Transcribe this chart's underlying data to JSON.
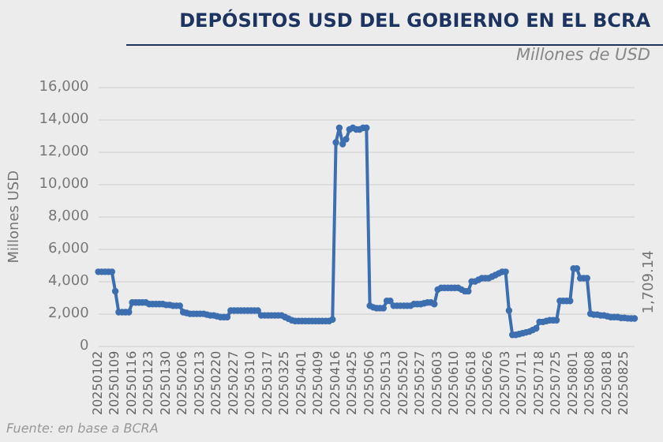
{
  "chart_data": {
    "type": "line",
    "title": "DEPÓSITOS USD DEL GOBIERNO EN EL BCRA",
    "subtitle": "Millones de USD",
    "ylabel": "Millones USD",
    "categories": [
      "20250102",
      null,
      null,
      null,
      null,
      "20250109",
      null,
      null,
      null,
      null,
      "20250116",
      null,
      null,
      null,
      null,
      "20250123",
      null,
      null,
      null,
      null,
      "20250130",
      null,
      null,
      null,
      null,
      "20250206",
      null,
      null,
      null,
      null,
      "20250213",
      null,
      null,
      null,
      null,
      "20250220",
      null,
      null,
      null,
      null,
      "20250227",
      null,
      null,
      null,
      null,
      "20250310",
      null,
      null,
      null,
      null,
      "20250317",
      null,
      null,
      null,
      null,
      "20250325",
      null,
      null,
      null,
      null,
      "20250401",
      null,
      null,
      null,
      null,
      "20250409",
      null,
      null,
      null,
      null,
      "20250416",
      null,
      null,
      null,
      null,
      "20250425",
      null,
      null,
      null,
      null,
      "20250506",
      null,
      null,
      null,
      null,
      "20250513",
      null,
      null,
      null,
      null,
      "20250520",
      null,
      null,
      null,
      null,
      "20250527",
      null,
      null,
      null,
      null,
      "20250603",
      null,
      null,
      null,
      null,
      "20250610",
      null,
      null,
      null,
      null,
      "20250618",
      null,
      null,
      null,
      null,
      "20250626",
      null,
      null,
      null,
      null,
      "20250703",
      null,
      null,
      null,
      null,
      "20250711",
      null,
      null,
      null,
      null,
      "20250718",
      null,
      null,
      null,
      null,
      "20250725",
      null,
      null,
      null,
      null,
      "20250801",
      null,
      null,
      null,
      null,
      "20250808",
      null,
      null,
      null,
      null,
      "20250818",
      null,
      null,
      null,
      null,
      "20250825",
      null,
      null,
      null
    ],
    "series": [
      {
        "color": "#3d6fb0",
        "values": [
          4600,
          4600,
          4600,
          4600,
          4600,
          3400,
          2100,
          2100,
          2100,
          2100,
          2700,
          2700,
          2700,
          2700,
          2700,
          2600,
          2600,
          2600,
          2600,
          2600,
          2550,
          2550,
          2500,
          2500,
          2500,
          2100,
          2050,
          2000,
          2000,
          2000,
          2000,
          2000,
          1950,
          1900,
          1900,
          1850,
          1800,
          1800,
          1800,
          2200,
          2200,
          2200,
          2200,
          2200,
          2200,
          2200,
          2200,
          2200,
          1900,
          1900,
          1900,
          1900,
          1900,
          1900,
          1900,
          1800,
          1700,
          1600,
          1550,
          1550,
          1550,
          1550,
          1550,
          1550,
          1550,
          1550,
          1550,
          1550,
          1550,
          1650,
          12600,
          13500,
          12500,
          12800,
          13400,
          13500,
          13400,
          13400,
          13500,
          13500,
          2500,
          2400,
          2350,
          2350,
          2350,
          2800,
          2800,
          2500,
          2500,
          2500,
          2500,
          2500,
          2500,
          2600,
          2600,
          2600,
          2650,
          2700,
          2700,
          2600,
          3500,
          3600,
          3600,
          3600,
          3600,
          3600,
          3600,
          3500,
          3400,
          3400,
          4000,
          4000,
          4100,
          4200,
          4200,
          4200,
          4300,
          4400,
          4500,
          4600,
          4600,
          2200,
          700,
          700,
          750,
          800,
          850,
          900,
          1000,
          1100,
          1500,
          1500,
          1550,
          1600,
          1600,
          1600,
          2800,
          2800,
          2800,
          2800,
          4800,
          4800,
          4200,
          4200,
          4200,
          2000,
          1950,
          1950,
          1900,
          1900,
          1850,
          1800,
          1800,
          1800,
          1750,
          1750,
          1720,
          1710,
          1709.14
        ],
        "value_labels": [
          null,
          null,
          null,
          null,
          null,
          null,
          null,
          null,
          null,
          null,
          null,
          null,
          null,
          null,
          null,
          null,
          null,
          null,
          null,
          null,
          null,
          null,
          null,
          null,
          null,
          null,
          null,
          null,
          null,
          null,
          null,
          null,
          null,
          null,
          null,
          null,
          null,
          null,
          null,
          null,
          null,
          null,
          null,
          null,
          null,
          null,
          null,
          null,
          null,
          null,
          null,
          null,
          null,
          null,
          null,
          null,
          null,
          null,
          null,
          null,
          null,
          null,
          null,
          null,
          null,
          null,
          null,
          null,
          null,
          null,
          null,
          null,
          null,
          null,
          null,
          null,
          null,
          null,
          null,
          null,
          null,
          null,
          null,
          null,
          null,
          null,
          null,
          null,
          null,
          null,
          null,
          null,
          null,
          null,
          null,
          null,
          null,
          null,
          null,
          null,
          null,
          null,
          null,
          null,
          null,
          null,
          null,
          null,
          null,
          null,
          null,
          null,
          null,
          null,
          null,
          null,
          null,
          null,
          null,
          null,
          null,
          null,
          null,
          null,
          null,
          null,
          null,
          null,
          null,
          null,
          null,
          null,
          null,
          null,
          null,
          null,
          null,
          null,
          null,
          null,
          null,
          null,
          null,
          null,
          null,
          null,
          null,
          null,
          null,
          null,
          null,
          null,
          null,
          null,
          null,
          null,
          null,
          null,
          "1,709.14"
        ]
      }
    ],
    "ylim": [
      0,
      16000
    ],
    "yticks": [
      {
        "value": 0,
        "label": "0"
      },
      {
        "value": 2000,
        "label": "2,000"
      },
      {
        "value": 4000,
        "label": "4,000"
      },
      {
        "value": 6000,
        "label": "6,000"
      },
      {
        "value": 8000,
        "label": "8,000"
      },
      {
        "value": 10000,
        "label": "10,000"
      },
      {
        "value": 12000,
        "label": "12,000"
      },
      {
        "value": 14000,
        "label": "14,000"
      },
      {
        "value": 16000,
        "label": "16,000"
      }
    ],
    "grid": "y",
    "legend": false,
    "marker": "circle",
    "line_style": "solid",
    "annotations": [
      "Fuente: en base a BCRA"
    ]
  }
}
